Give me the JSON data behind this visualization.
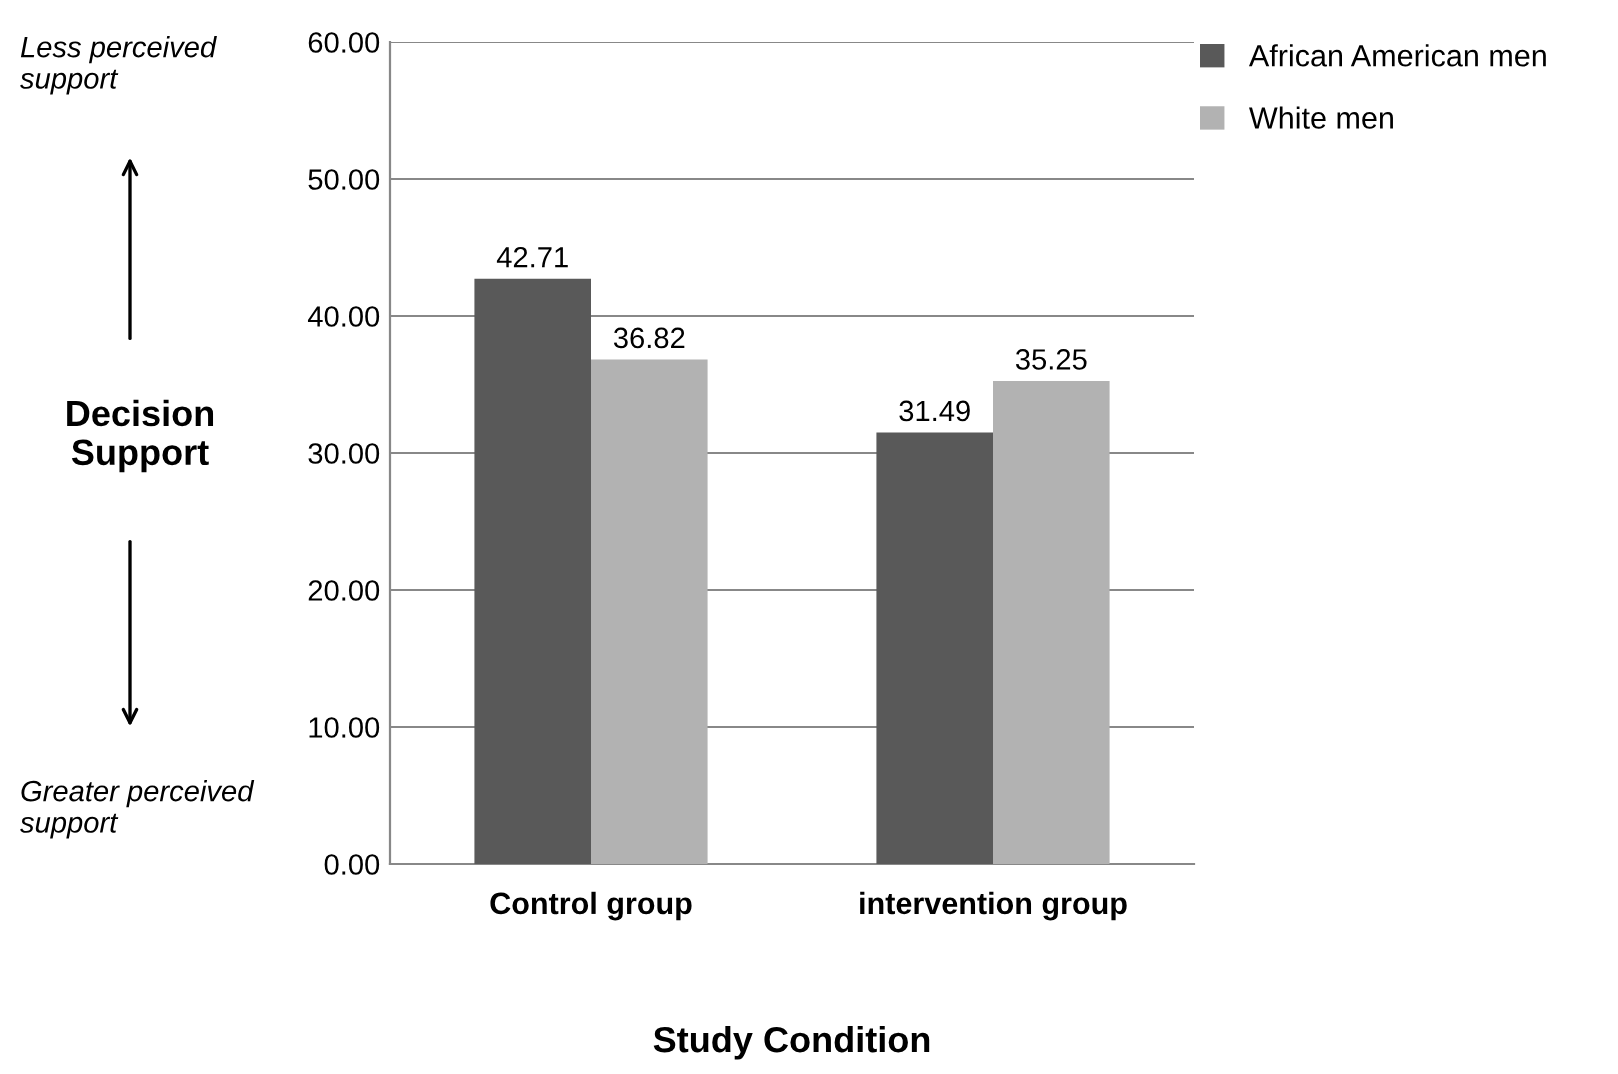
{
  "chart_data": {
    "type": "bar",
    "categories": [
      "Control group",
      "intervention group"
    ],
    "series": [
      {
        "name": "African American men",
        "color": "#595959",
        "values": [
          42.71,
          31.49
        ]
      },
      {
        "name": "White men",
        "color": "#b2b2b2",
        "values": [
          36.82,
          35.25
        ]
      }
    ],
    "xlabel": "Study Condition",
    "ylabel": "Decision Support",
    "annotations": [
      "Less perceived support",
      "Greater perceived support"
    ],
    "ylim": [
      0,
      60
    ],
    "yticks": [
      {
        "value": 0,
        "label": "0.00"
      },
      {
        "value": 10,
        "label": "10.00"
      },
      {
        "value": 20,
        "label": "20.00"
      },
      {
        "value": 30,
        "label": "30.00"
      },
      {
        "value": 40,
        "label": "40.00"
      },
      {
        "value": 50,
        "label": "50.00"
      },
      {
        "value": 60,
        "label": "60.00"
      }
    ],
    "grid": "y",
    "legend": "top right",
    "data_labels": true
  }
}
